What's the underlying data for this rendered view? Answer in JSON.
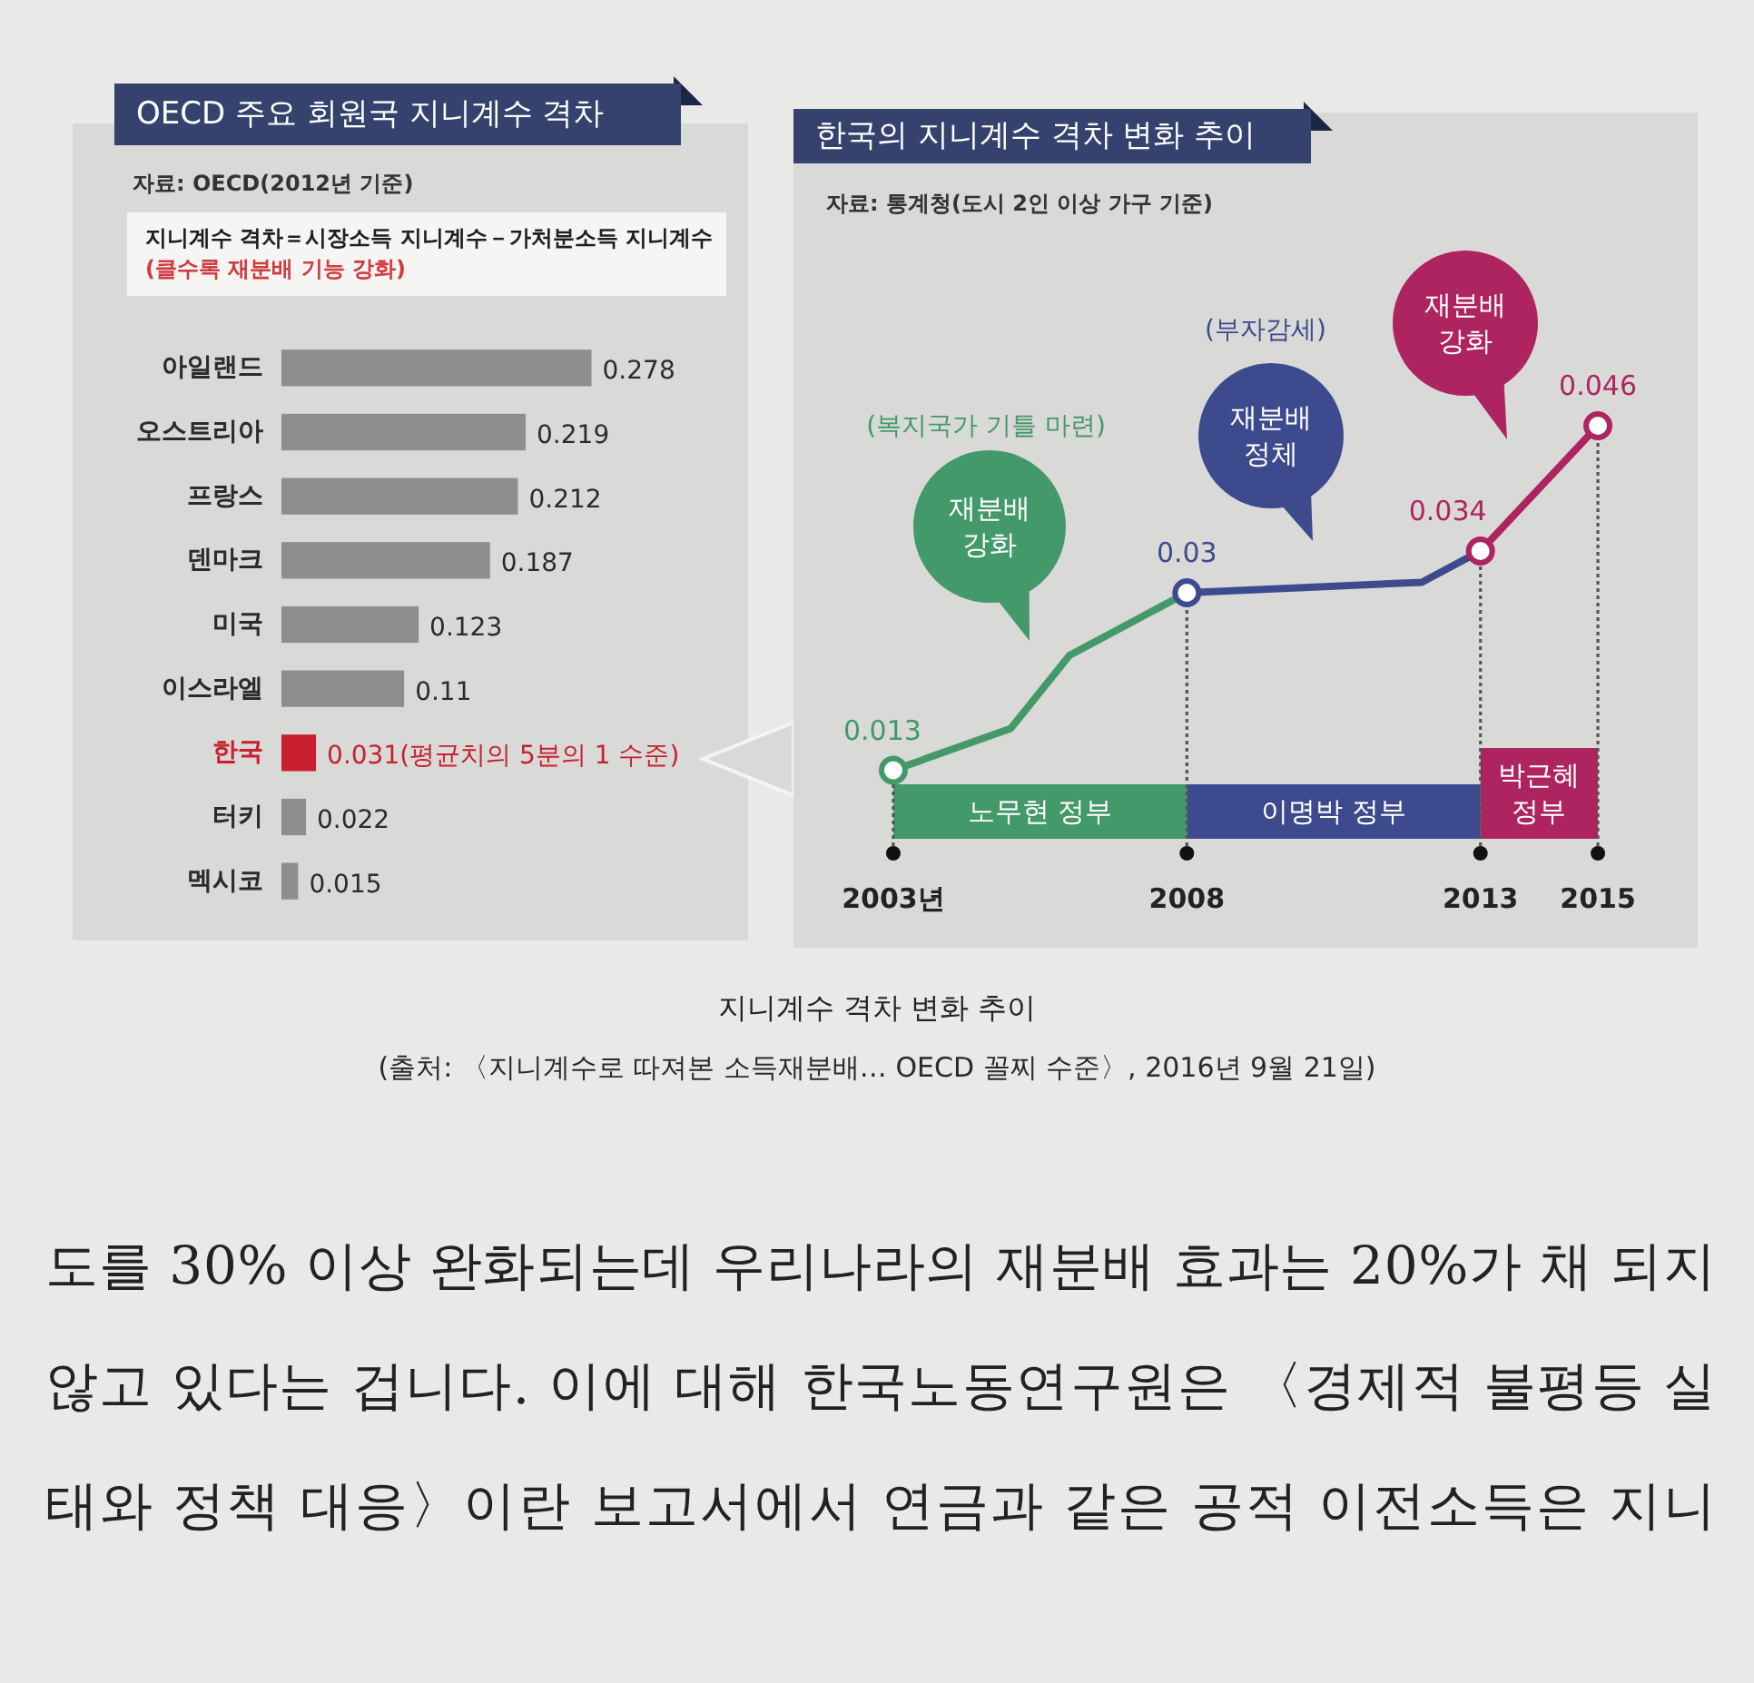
{
  "chart_data": [
    {
      "type": "bar",
      "orientation": "horizontal",
      "title": "OECD 주요 회원국 지니계수 격차",
      "subtitle": "자료: OECD(2012년 기준)",
      "annotations": [
        "지니계수 격차＝시장소득 지니계수－가처분소득 지니계수",
        "(클수록 재분배 기능 강화)"
      ],
      "categories": [
        "아일랜드",
        "오스트리아",
        "프랑스",
        "덴마크",
        "미국",
        "이스라엘",
        "한국",
        "터키",
        "멕시코"
      ],
      "values": [
        0.278,
        0.219,
        0.212,
        0.187,
        0.123,
        0.11,
        0.031,
        0.022,
        0.015
      ],
      "colors": [
        "#8e8e90",
        "#8e8e90",
        "#8e8e90",
        "#8e8e90",
        "#8e8e90",
        "#8e8e90",
        "#c8202e",
        "#8e8e90",
        "#8e8e90"
      ],
      "value_labels": [
        "0.278",
        "0.219",
        "0.212",
        "0.187",
        "0.123",
        "0.11",
        "0.031(평균치의 5분의 1 수준)",
        "0.022",
        "0.015"
      ],
      "xlim": [
        0,
        0.42
      ],
      "tick_labels": "y"
    },
    {
      "type": "line",
      "title": "한국의 지니계수 격차 변화 추이",
      "subtitle": "자료: 통계청(도시 2인 이상 가구 기준)",
      "annotations": [
        "(복지국가 기틀 마련)",
        "재분배 강화",
        "(부자감세)",
        "재분배 정체",
        "재분배 강화"
      ],
      "series": [
        {
          "type": "line",
          "color": "#44996a",
          "x": [
            2003,
            2005,
            2006,
            2007,
            2008
          ],
          "values": [
            0.013,
            0.017,
            0.024,
            0.027,
            0.03
          ]
        },
        {
          "type": "line",
          "color": "#3d4a8e",
          "x": [
            2008,
            2012,
            2013
          ],
          "values": [
            0.03,
            0.031,
            0.034
          ]
        },
        {
          "type": "line",
          "color": "#ad2461",
          "x": [
            2013,
            2015
          ],
          "values": [
            0.034,
            0.046
          ]
        },
        {
          "type": "lollipop",
          "marker": "circle",
          "line_style": "dotted",
          "color": "#555555",
          "colors": [
            "#44996a",
            "#3d4a8e",
            "#ad2461",
            "#ad2461"
          ],
          "x": [
            2003,
            2008,
            2013,
            2015
          ],
          "values": [
            0.013,
            0.03,
            0.034,
            0.046
          ],
          "value_labels": [
            "0.013",
            "0.03",
            "0.034",
            "0.046"
          ]
        }
      ],
      "bands": [
        {
          "axis": "x",
          "from": 2003,
          "to": 2008,
          "label": "노무현 정부",
          "color": "#44996a"
        },
        {
          "axis": "x",
          "from": 2008,
          "to": 2013,
          "label": "이명박 정부",
          "color": "#3d4a8e"
        },
        {
          "axis": "x",
          "from": 2013,
          "to": 2015,
          "label": "박근혜 정부",
          "color": "#ad2461"
        }
      ],
      "xlim": [
        2001.3,
        2016.7
      ],
      "ylim": [
        -0.004,
        0.076
      ],
      "xticks": [
        {
          "value": 2003,
          "label": "2003년"
        },
        2008,
        2013,
        2015
      ],
      "tick_labels": "x"
    },
    {
      "type": "other",
      "title": "지니계수 격차 변화 추이",
      "annotations": [
        "(출처: 〈지니계수로 따져본 소득재분배… OECD 꼴찌 수준〉, 2016년 9월 21일)",
        "도를 30% 이상 완화되는데 우리나라의 재분배 효과는 20%가 채 되지",
        "않고 있다는 겁니다. 이에 대해 한국노동연구원은 〈경제적 불평등 실",
        "태와 정책 대응〉이란 보고서에서 연금과 같은 공적 이전소득은 지니"
      ]
    }
  ]
}
